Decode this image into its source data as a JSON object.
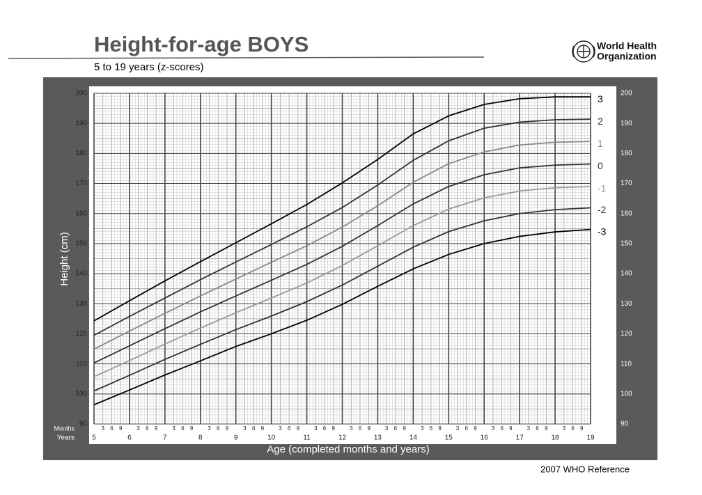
{
  "chart_data": {
    "type": "line",
    "title": "Height-for-age  BOYS",
    "subtitle": "5 to 19 years (z-scores)",
    "organization": [
      "World Health",
      "Organization"
    ],
    "footer": "2007 WHO Reference",
    "x_label": "Age (completed months and years)",
    "y_label": "Height (cm)",
    "x_row_labels": [
      "Months",
      "Years"
    ],
    "month_labels": [
      "3",
      "6",
      "9"
    ],
    "x": [
      5,
      6,
      7,
      8,
      9,
      10,
      11,
      12,
      13,
      14,
      15,
      16,
      17,
      18,
      19
    ],
    "xlim": [
      5,
      19
    ],
    "xticks": [
      5,
      6,
      7,
      8,
      9,
      10,
      11,
      12,
      13,
      14,
      15,
      16,
      17,
      18,
      19
    ],
    "ylim": [
      90,
      200
    ],
    "yticks": [
      90,
      100,
      110,
      120,
      130,
      140,
      150,
      160,
      170,
      180,
      190,
      200
    ],
    "grid": true,
    "series": [
      {
        "name": "3",
        "color": "#000000",
        "values": [
          124.3,
          131,
          137.6,
          144,
          150.3,
          156.6,
          163,
          170.2,
          178,
          186.5,
          192.5,
          196.3,
          198.2,
          198.8,
          198.8
        ]
      },
      {
        "name": "2",
        "color": "#333333",
        "values": [
          119.5,
          125.8,
          131.9,
          138,
          143.9,
          149.7,
          155.6,
          162,
          169.5,
          177.7,
          184.2,
          188.4,
          190.4,
          191.2,
          191.4
        ]
      },
      {
        "name": "1",
        "color": "#888888",
        "values": [
          114.9,
          120.9,
          126.8,
          132.6,
          138.2,
          143.8,
          149.3,
          155.5,
          162.6,
          170.4,
          176.6,
          180.5,
          182.8,
          183.7,
          184
        ]
      },
      {
        "name": "0",
        "color": "#333333",
        "values": [
          110.3,
          116,
          121.7,
          127.3,
          132.6,
          137.8,
          143.1,
          149.1,
          156,
          163.2,
          169,
          172.9,
          175.2,
          176.1,
          176.5
        ]
      },
      {
        "name": "-1",
        "color": "#999999",
        "values": [
          105.7,
          111.1,
          116.6,
          121.9,
          127,
          131.9,
          136.9,
          142.7,
          149.3,
          156,
          161.5,
          165.2,
          167.5,
          168.6,
          169
        ]
      },
      {
        "name": "-2",
        "color": "#333333",
        "values": [
          101,
          106.2,
          111.5,
          116.5,
          121.4,
          125.9,
          130.7,
          136.2,
          142.5,
          148.8,
          154,
          157.6,
          160,
          161.3,
          161.9
        ]
      },
      {
        "name": "-3",
        "color": "#000000",
        "values": [
          96.4,
          101.3,
          106.3,
          111,
          115.8,
          120,
          124.5,
          129.8,
          135.8,
          141.6,
          146.4,
          150,
          152.4,
          153.9,
          154.7
        ]
      }
    ]
  }
}
